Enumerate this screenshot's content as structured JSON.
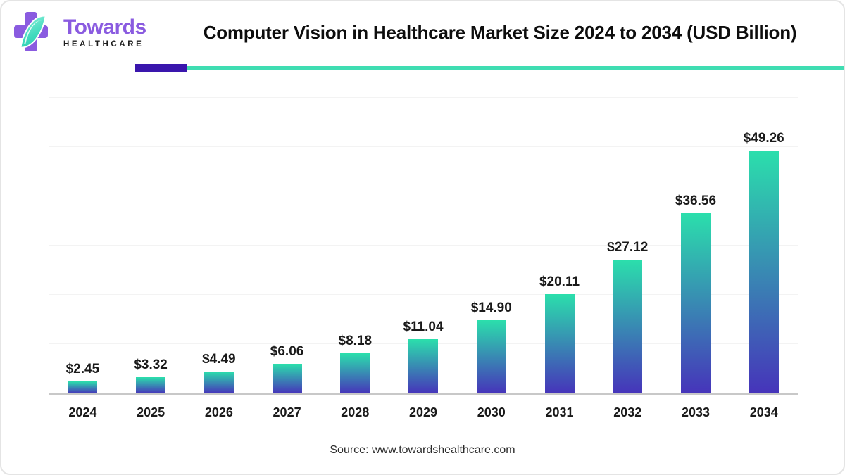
{
  "header": {
    "logo": {
      "brand": "Towards",
      "sub": "HEALTHCARE"
    },
    "title": "Computer Vision in Healthcare Market Size 2024 to 2034 (USD Billion)"
  },
  "chart_data": {
    "type": "bar",
    "title": "Computer Vision in Healthcare Market Size 2024 to 2034 (USD Billion)",
    "unit": "USD Billion",
    "categories": [
      "2024",
      "2025",
      "2026",
      "2027",
      "2028",
      "2029",
      "2030",
      "2031",
      "2032",
      "2033",
      "2034"
    ],
    "values": [
      2.45,
      3.32,
      4.49,
      6.06,
      8.18,
      11.04,
      14.9,
      20.11,
      27.12,
      36.56,
      49.26
    ],
    "labels": [
      "$2.45",
      "$3.32",
      "$4.49",
      "$6.06",
      "$8.18",
      "$11.04",
      "$14.90",
      "$20.11",
      "$27.12",
      "$36.56",
      "$49.26"
    ],
    "xlabel": "",
    "ylabel": "",
    "ylim": [
      0,
      60
    ],
    "gridline_step": 10,
    "grid": "on",
    "legend": "none"
  },
  "footer": {
    "source": "Source: www.towardshealthcare.com"
  },
  "colors": {
    "accent_purple": "#8a5be0",
    "divider_indigo": "#3a16ad",
    "divider_teal": "#3fddb2",
    "bar_top": "#2bdfac",
    "bar_bottom": "#4634ba",
    "title_color": "#0d0d0d",
    "label_color": "#1a1a1a",
    "gridline": "#f3f3f3",
    "baseline": "#c8c8c8",
    "source_color": "#2b2b2b",
    "card_border": "#e4e4e4"
  }
}
